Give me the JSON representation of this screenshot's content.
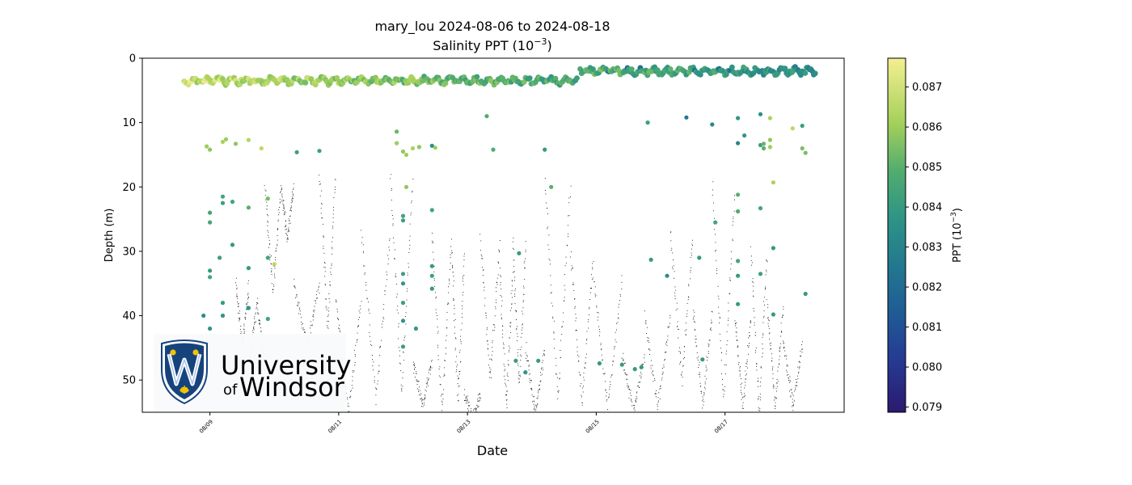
{
  "chart_data": {
    "type": "scatter",
    "title": "mary_lou 2024-08-06 to 2024-08-18",
    "subtitle": "Salinity PPT (10",
    "subtitle_exp": "−3",
    "subtitle_end": ")",
    "xlabel": "Date",
    "ylabel": "Depth (m)",
    "x_tick_labels": [
      "08/09",
      "08/11",
      "08/13",
      "08/15",
      "08/17"
    ],
    "x_tick_days": [
      9,
      11,
      13,
      15,
      17
    ],
    "xlim": [
      7.95,
      18.85
    ],
    "ylim": [
      55,
      0
    ],
    "y_inverted": true,
    "y_ticks": [
      0,
      10,
      20,
      30,
      40,
      50
    ],
    "grid": false,
    "colorbar": {
      "label": "PPT (10",
      "label_exp": "−3",
      "label_end": ")",
      "range": [
        0.07887,
        0.08772
      ],
      "ticks": [
        0.079,
        0.08,
        0.081,
        0.082,
        0.083,
        0.084,
        0.085,
        0.086,
        0.087
      ],
      "tick_labels": [
        "0.079",
        "0.080",
        "0.081",
        "0.082",
        "0.083",
        "0.084",
        "0.085",
        "0.086",
        "0.087"
      ],
      "colormap": "viridis-like (navy to pale yellow)"
    },
    "series": [
      {
        "kind": "surface_band",
        "segments": [
          {
            "x_start": 8.6,
            "x_end": 14.7,
            "depth": 3.5,
            "values_start": 0.0868,
            "values_end": 0.0845
          },
          {
            "x_start": 14.75,
            "x_end": 18.4,
            "depth": 2.0,
            "values_start": 0.085,
            "values_end": 0.0835
          }
        ]
      },
      {
        "kind": "salinity_points",
        "points": [
          [
            8.95,
            13.7,
            0.086
          ],
          [
            9.0,
            14.2,
            0.0858
          ],
          [
            9.2,
            13.0,
            0.0862
          ],
          [
            9.25,
            12.6,
            0.086
          ],
          [
            9.4,
            13.3,
            0.0858
          ],
          [
            9.6,
            12.7,
            0.0864
          ],
          [
            9.8,
            14.0,
            0.0866
          ],
          [
            9.0,
            24.0,
            0.0845
          ],
          [
            9.0,
            25.5,
            0.0845
          ],
          [
            9.2,
            21.5,
            0.0845
          ],
          [
            9.2,
            22.5,
            0.0842
          ],
          [
            9.35,
            22.3,
            0.0845
          ],
          [
            9.35,
            29.0,
            0.084
          ],
          [
            9.0,
            33.0,
            0.084
          ],
          [
            9.0,
            34.0,
            0.0845
          ],
          [
            9.15,
            31.0,
            0.0842
          ],
          [
            9.2,
            38.0,
            0.084
          ],
          [
            9.2,
            40.0,
            0.0838
          ],
          [
            8.9,
            40.0,
            0.0835
          ],
          [
            9.0,
            42.0,
            0.0838
          ],
          [
            9.6,
            23.2,
            0.085
          ],
          [
            9.6,
            32.6,
            0.084
          ],
          [
            9.6,
            38.8,
            0.0838
          ],
          [
            9.9,
            21.8,
            0.0855
          ],
          [
            9.9,
            31.0,
            0.0845
          ],
          [
            10.0,
            32.0,
            0.0865
          ],
          [
            9.9,
            40.5,
            0.0845
          ],
          [
            10.35,
            14.6,
            0.0842
          ],
          [
            10.7,
            14.4,
            0.0842
          ],
          [
            11.9,
            11.4,
            0.0852
          ],
          [
            11.9,
            13.2,
            0.086
          ],
          [
            12.0,
            14.5,
            0.0858
          ],
          [
            12.05,
            15.0,
            0.086
          ],
          [
            12.15,
            14.0,
            0.0862
          ],
          [
            12.25,
            13.8,
            0.0858
          ],
          [
            12.05,
            20.0,
            0.0858
          ],
          [
            12.0,
            24.5,
            0.0845
          ],
          [
            12.0,
            25.2,
            0.0842
          ],
          [
            12.0,
            33.5,
            0.0842
          ],
          [
            12.0,
            35.0,
            0.0838
          ],
          [
            12.0,
            38.0,
            0.0842
          ],
          [
            12.0,
            40.8,
            0.0838
          ],
          [
            12.0,
            44.8,
            0.0842
          ],
          [
            12.2,
            42.0,
            0.084
          ],
          [
            12.45,
            13.6,
            0.0835
          ],
          [
            12.5,
            13.9,
            0.086
          ],
          [
            12.45,
            23.6,
            0.0845
          ],
          [
            12.45,
            32.3,
            0.084
          ],
          [
            12.45,
            33.8,
            0.0842
          ],
          [
            12.45,
            35.8,
            0.084
          ],
          [
            13.3,
            9.0,
            0.0848
          ],
          [
            13.4,
            14.2,
            0.0848
          ],
          [
            13.8,
            30.3,
            0.084
          ],
          [
            13.75,
            47.0,
            0.084
          ],
          [
            13.9,
            48.8,
            0.0838
          ],
          [
            14.1,
            47.0,
            0.084
          ],
          [
            14.2,
            14.2,
            0.084
          ],
          [
            14.3,
            20.0,
            0.085
          ],
          [
            15.05,
            47.4,
            0.084
          ],
          [
            15.4,
            47.6,
            0.084
          ],
          [
            15.6,
            48.3,
            0.084
          ],
          [
            15.7,
            48.0,
            0.084
          ],
          [
            15.8,
            10.0,
            0.0842
          ],
          [
            15.85,
            31.3,
            0.084
          ],
          [
            16.1,
            33.8,
            0.0835
          ],
          [
            16.4,
            9.2,
            0.0825
          ],
          [
            16.6,
            31.0,
            0.084
          ],
          [
            16.65,
            46.8,
            0.084
          ],
          [
            16.8,
            10.3,
            0.0832
          ],
          [
            16.85,
            25.5,
            0.0845
          ],
          [
            17.2,
            9.3,
            0.0838
          ],
          [
            17.2,
            21.2,
            0.085
          ],
          [
            17.2,
            23.8,
            0.0848
          ],
          [
            17.2,
            13.2,
            0.0832
          ],
          [
            17.3,
            12.0,
            0.0838
          ],
          [
            17.2,
            31.5,
            0.0845
          ],
          [
            17.2,
            33.8,
            0.084
          ],
          [
            17.2,
            38.2,
            0.084
          ],
          [
            17.55,
            8.7,
            0.0835
          ],
          [
            17.55,
            13.5,
            0.0842
          ],
          [
            17.6,
            13.3,
            0.0852
          ],
          [
            17.6,
            14.0,
            0.085
          ],
          [
            17.55,
            23.3,
            0.0845
          ],
          [
            17.55,
            33.5,
            0.0842
          ],
          [
            17.7,
            9.3,
            0.0862
          ],
          [
            17.7,
            12.7,
            0.0858
          ],
          [
            17.7,
            13.8,
            0.086
          ],
          [
            17.75,
            19.3,
            0.0862
          ],
          [
            17.75,
            29.5,
            0.084
          ],
          [
            17.75,
            39.8,
            0.084
          ],
          [
            18.05,
            10.9,
            0.0865
          ],
          [
            18.2,
            10.5,
            0.0842
          ],
          [
            18.2,
            14.0,
            0.0855
          ],
          [
            18.25,
            14.7,
            0.0855
          ],
          [
            18.25,
            36.6,
            0.084
          ]
        ]
      },
      {
        "kind": "dive_profile_track",
        "color": "black",
        "cycles": [
          [
            8.65,
            42,
            0
          ],
          [
            9.15,
            42,
            0
          ],
          [
            9.4,
            35,
            45
          ],
          [
            9.6,
            48,
            38
          ],
          [
            9.85,
            20,
            36
          ],
          [
            10.1,
            20,
            28
          ],
          [
            10.3,
            35,
            45
          ],
          [
            10.7,
            18,
            42
          ],
          [
            10.95,
            37,
            55
          ],
          [
            11.35,
            27,
            53
          ],
          [
            11.8,
            18,
            52
          ],
          [
            12.15,
            47,
            54
          ],
          [
            12.45,
            27,
            55
          ],
          [
            12.75,
            30,
            53
          ],
          [
            12.95,
            52,
            56
          ],
          [
            13.2,
            28,
            50
          ],
          [
            13.5,
            33,
            54
          ],
          [
            13.7,
            28,
            51
          ],
          [
            13.9,
            45,
            55
          ],
          [
            14.2,
            19,
            53
          ],
          [
            14.6,
            30,
            54
          ],
          [
            14.95,
            34,
            54
          ],
          [
            15.4,
            46,
            55
          ],
          [
            15.75,
            40,
            54
          ],
          [
            16.15,
            27,
            50
          ],
          [
            16.5,
            39,
            54
          ],
          [
            16.8,
            20,
            53
          ],
          [
            17.15,
            40,
            54
          ],
          [
            17.4,
            30,
            55
          ],
          [
            17.65,
            38,
            54
          ],
          [
            17.9,
            44,
            54
          ],
          [
            18.2,
            40,
            53
          ]
        ]
      }
    ]
  },
  "logo": {
    "line1": "University",
    "line2_prefix": "of",
    "line2": "Windsor",
    "shield_letter": "W",
    "colors": {
      "navy": "#17437d",
      "gold": "#f2c400",
      "text": "#4a3f3f"
    }
  }
}
